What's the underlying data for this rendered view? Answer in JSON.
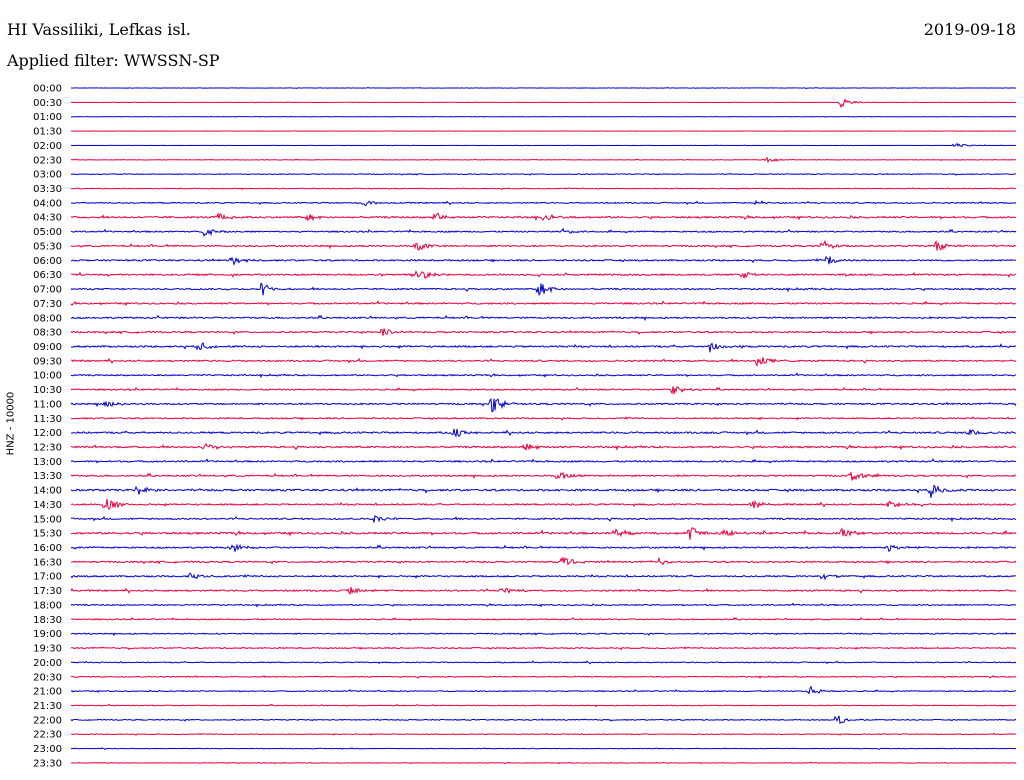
{
  "header": {
    "station": "HI Vassiliki, Lefkas isl.",
    "date": "2019-09-18",
    "filter": "Applied filter: WWSSN-SP"
  },
  "chart_data": {
    "type": "line",
    "title": "HI Vassiliki, Lefkas isl.",
    "ylabel": "HNZ - 10000",
    "xlabel": "",
    "row_labels": [
      "00:00",
      "00:30",
      "01:00",
      "01:30",
      "02:00",
      "02:30",
      "03:00",
      "03:30",
      "04:00",
      "04:30",
      "05:00",
      "05:30",
      "06:00",
      "06:30",
      "07:00",
      "07:30",
      "08:00",
      "08:30",
      "09:00",
      "09:30",
      "10:00",
      "10:30",
      "11:00",
      "11:30",
      "12:00",
      "12:30",
      "13:00",
      "13:30",
      "14:00",
      "14:30",
      "15:00",
      "15:30",
      "16:00",
      "16:30",
      "17:00",
      "17:30",
      "18:00",
      "18:30",
      "19:00",
      "19:30",
      "20:00",
      "20:30",
      "21:00",
      "21:30",
      "22:00",
      "22:30",
      "23:00",
      "23:30"
    ],
    "row_minutes": 30,
    "colors": [
      "#0000cc",
      "#e8003c"
    ],
    "noise_level": [
      0.2,
      0.15,
      0.15,
      0.1,
      0.15,
      0.25,
      0.4,
      0.4,
      0.6,
      0.9,
      0.7,
      0.8,
      0.8,
      0.8,
      0.8,
      0.8,
      0.8,
      0.8,
      0.9,
      0.8,
      0.7,
      0.7,
      0.8,
      0.7,
      0.9,
      0.9,
      0.8,
      0.8,
      1.0,
      0.8,
      0.8,
      1.0,
      0.8,
      0.8,
      0.8,
      0.8,
      0.6,
      0.6,
      0.6,
      0.6,
      0.5,
      0.5,
      0.5,
      0.4,
      0.5,
      0.4,
      0.3,
      0.3
    ],
    "events": [
      {
        "row": 1,
        "x": 0.814,
        "amp": 5
      },
      {
        "row": 4,
        "x": 0.935,
        "amp": 3
      },
      {
        "row": 5,
        "x": 0.735,
        "amp": 3
      },
      {
        "row": 8,
        "x": 0.31,
        "amp": 4
      },
      {
        "row": 8,
        "x": 0.725,
        "amp": 4
      },
      {
        "row": 9,
        "x": 0.155,
        "amp": 5
      },
      {
        "row": 9,
        "x": 0.25,
        "amp": 5
      },
      {
        "row": 9,
        "x": 0.385,
        "amp": 5
      },
      {
        "row": 9,
        "x": 0.5,
        "amp": 5
      },
      {
        "row": 10,
        "x": 0.14,
        "amp": 4
      },
      {
        "row": 10,
        "x": 0.52,
        "amp": 4
      },
      {
        "row": 11,
        "x": 0.365,
        "amp": 6
      },
      {
        "row": 11,
        "x": 0.795,
        "amp": 6
      },
      {
        "row": 11,
        "x": 0.915,
        "amp": 6
      },
      {
        "row": 12,
        "x": 0.17,
        "amp": 5
      },
      {
        "row": 12,
        "x": 0.8,
        "amp": 6
      },
      {
        "row": 13,
        "x": 0.365,
        "amp": 9
      },
      {
        "row": 13,
        "x": 0.71,
        "amp": 5
      },
      {
        "row": 14,
        "x": 0.2,
        "amp": 8
      },
      {
        "row": 14,
        "x": 0.495,
        "amp": 10
      },
      {
        "row": 17,
        "x": 0.33,
        "amp": 5
      },
      {
        "row": 18,
        "x": 0.135,
        "amp": 5
      },
      {
        "row": 18,
        "x": 0.675,
        "amp": 7
      },
      {
        "row": 19,
        "x": 0.725,
        "amp": 9
      },
      {
        "row": 21,
        "x": 0.635,
        "amp": 6
      },
      {
        "row": 22,
        "x": 0.035,
        "amp": 5
      },
      {
        "row": 22,
        "x": 0.445,
        "amp": 9
      },
      {
        "row": 24,
        "x": 0.405,
        "amp": 6
      },
      {
        "row": 24,
        "x": 0.95,
        "amp": 5
      },
      {
        "row": 25,
        "x": 0.14,
        "amp": 6
      },
      {
        "row": 25,
        "x": 0.48,
        "amp": 6
      },
      {
        "row": 27,
        "x": 0.515,
        "amp": 9
      },
      {
        "row": 27,
        "x": 0.825,
        "amp": 6
      },
      {
        "row": 28,
        "x": 0.07,
        "amp": 6
      },
      {
        "row": 28,
        "x": 0.91,
        "amp": 8
      },
      {
        "row": 29,
        "x": 0.035,
        "amp": 12
      },
      {
        "row": 29,
        "x": 0.72,
        "amp": 5
      },
      {
        "row": 29,
        "x": 0.865,
        "amp": 6
      },
      {
        "row": 30,
        "x": 0.32,
        "amp": 5
      },
      {
        "row": 31,
        "x": 0.575,
        "amp": 6
      },
      {
        "row": 31,
        "x": 0.655,
        "amp": 8
      },
      {
        "row": 31,
        "x": 0.69,
        "amp": 6
      },
      {
        "row": 31,
        "x": 0.815,
        "amp": 7
      },
      {
        "row": 32,
        "x": 0.17,
        "amp": 5
      },
      {
        "row": 32,
        "x": 0.865,
        "amp": 5
      },
      {
        "row": 33,
        "x": 0.52,
        "amp": 6
      },
      {
        "row": 33,
        "x": 0.62,
        "amp": 4
      },
      {
        "row": 34,
        "x": 0.125,
        "amp": 4
      },
      {
        "row": 34,
        "x": 0.795,
        "amp": 4
      },
      {
        "row": 35,
        "x": 0.295,
        "amp": 5
      },
      {
        "row": 35,
        "x": 0.455,
        "amp": 6
      },
      {
        "row": 42,
        "x": 0.78,
        "amp": 6
      },
      {
        "row": 44,
        "x": 0.81,
        "amp": 6
      }
    ]
  }
}
